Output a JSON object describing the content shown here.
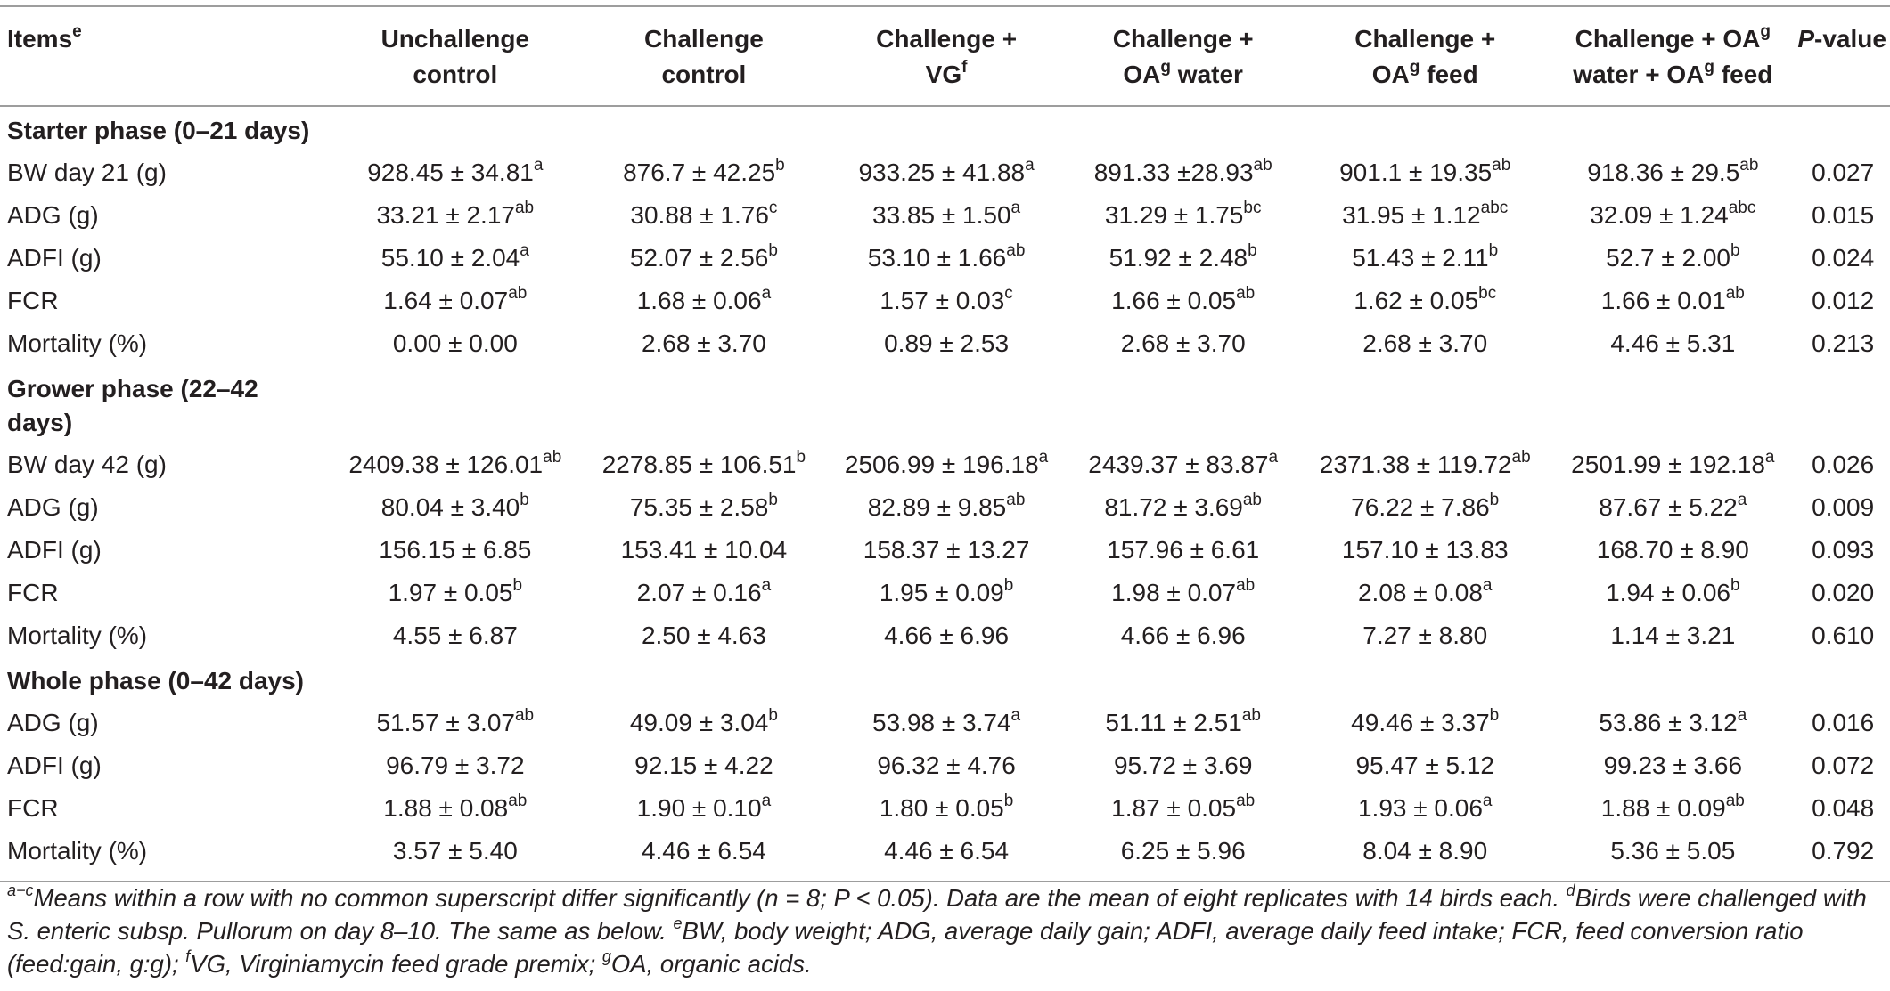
{
  "headers": [
    {
      "lines": [
        {
          "t": "Items",
          "s": "e"
        }
      ]
    },
    {
      "lines": [
        {
          "t": "Unchallenge",
          "s": ""
        },
        {
          "t": "control",
          "s": ""
        }
      ]
    },
    {
      "lines": [
        {
          "t": "Challenge",
          "s": ""
        },
        {
          "t": "control",
          "s": ""
        }
      ]
    },
    {
      "lines": [
        {
          "t": "Challenge +",
          "s": ""
        },
        {
          "t": "VG",
          "s": "f"
        }
      ]
    },
    {
      "lines": [
        {
          "t": "Challenge +",
          "s": ""
        },
        {
          "t": "OA",
          "s": "g",
          "t2": " water"
        }
      ]
    },
    {
      "lines": [
        {
          "t": "Challenge +",
          "s": ""
        },
        {
          "t": "OA",
          "s": "g",
          "t2": " feed"
        }
      ]
    },
    {
      "lines": [
        {
          "t": "Challenge + OA",
          "s": "g"
        },
        {
          "t": "water + OA",
          "s": "g",
          "t2": " feed"
        }
      ]
    },
    {
      "lines": [
        {
          "t": "P",
          "italic": true,
          "t2": "-value"
        }
      ]
    }
  ],
  "sections": [
    {
      "title": "Starter phase (0–21 days)",
      "rows": [
        {
          "label": "BW day 21 (g)",
          "cells": [
            [
              "928.45 ± 34.81",
              "a"
            ],
            [
              "876.7 ± 42.25",
              "b"
            ],
            [
              "933.25 ± 41.88",
              "a"
            ],
            [
              "891.33 ±28.93",
              "ab"
            ],
            [
              "901.1 ± 19.35",
              "ab"
            ],
            [
              "918.36 ± 29.5",
              "ab"
            ]
          ],
          "p": "0.027"
        },
        {
          "label": "ADG (g)",
          "cells": [
            [
              "33.21 ± 2.17",
              "ab"
            ],
            [
              "30.88 ± 1.76",
              "c"
            ],
            [
              "33.85 ± 1.50",
              "a"
            ],
            [
              "31.29 ± 1.75",
              "bc"
            ],
            [
              "31.95 ± 1.12",
              "abc"
            ],
            [
              "32.09 ± 1.24",
              "abc"
            ]
          ],
          "p": "0.015"
        },
        {
          "label": "ADFI (g)",
          "cells": [
            [
              "55.10 ± 2.04",
              "a"
            ],
            [
              "52.07 ± 2.56",
              "b"
            ],
            [
              "53.10 ± 1.66",
              "ab"
            ],
            [
              "51.92 ± 2.48",
              "b"
            ],
            [
              "51.43 ± 2.11",
              "b"
            ],
            [
              "52.7 ± 2.00",
              "b"
            ]
          ],
          "p": "0.024"
        },
        {
          "label": "FCR",
          "cells": [
            [
              "1.64 ± 0.07",
              "ab"
            ],
            [
              "1.68 ± 0.06",
              "a"
            ],
            [
              "1.57 ± 0.03",
              "c"
            ],
            [
              "1.66 ± 0.05",
              "ab"
            ],
            [
              "1.62 ± 0.05",
              "bc"
            ],
            [
              "1.66 ± 0.01",
              "ab"
            ]
          ],
          "p": "0.012"
        },
        {
          "label": "Mortality (%)",
          "cells": [
            [
              "0.00 ± 0.00",
              ""
            ],
            [
              "2.68 ± 3.70",
              ""
            ],
            [
              "0.89 ± 2.53",
              ""
            ],
            [
              "2.68 ± 3.70",
              ""
            ],
            [
              "2.68 ± 3.70",
              ""
            ],
            [
              "4.46 ± 5.31",
              ""
            ]
          ],
          "p": "0.213"
        }
      ]
    },
    {
      "title": "Grower phase (22–42 days)",
      "rows": [
        {
          "label": "BW day 42 (g)",
          "cells": [
            [
              "2409.38 ± 126.01",
              "ab"
            ],
            [
              "2278.85 ± 106.51",
              "b"
            ],
            [
              "2506.99 ± 196.18",
              "a"
            ],
            [
              "2439.37 ± 83.87",
              "a"
            ],
            [
              "2371.38 ± 119.72",
              "ab"
            ],
            [
              "2501.99 ± 192.18",
              "a"
            ]
          ],
          "p": "0.026"
        },
        {
          "label": "ADG (g)",
          "cells": [
            [
              "80.04 ± 3.40",
              "b"
            ],
            [
              "75.35 ± 2.58",
              "b"
            ],
            [
              "82.89 ± 9.85",
              "ab"
            ],
            [
              "81.72 ± 3.69",
              "ab"
            ],
            [
              "76.22 ± 7.86",
              "b"
            ],
            [
              "87.67 ± 5.22",
              "a"
            ]
          ],
          "p": "0.009"
        },
        {
          "label": "ADFI (g)",
          "cells": [
            [
              "156.15 ± 6.85",
              ""
            ],
            [
              "153.41 ± 10.04",
              ""
            ],
            [
              "158.37 ± 13.27",
              ""
            ],
            [
              "157.96 ± 6.61",
              ""
            ],
            [
              "157.10 ± 13.83",
              ""
            ],
            [
              "168.70 ± 8.90",
              ""
            ]
          ],
          "p": "0.093"
        },
        {
          "label": "FCR",
          "cells": [
            [
              "1.97 ± 0.05",
              "b"
            ],
            [
              "2.07 ± 0.16",
              "a"
            ],
            [
              "1.95 ± 0.09",
              "b"
            ],
            [
              "1.98 ± 0.07",
              "ab"
            ],
            [
              "2.08 ± 0.08",
              "a"
            ],
            [
              "1.94 ± 0.06",
              "b"
            ]
          ],
          "p": "0.020"
        },
        {
          "label": "Mortality (%)",
          "cells": [
            [
              "4.55 ± 6.87",
              ""
            ],
            [
              "2.50 ± 4.63",
              ""
            ],
            [
              "4.66 ± 6.96",
              ""
            ],
            [
              "4.66 ± 6.96",
              ""
            ],
            [
              "7.27 ± 8.80",
              ""
            ],
            [
              "1.14 ± 3.21",
              ""
            ]
          ],
          "p": "0.610"
        }
      ]
    },
    {
      "title": "Whole phase (0–42 days)",
      "rows": [
        {
          "label": "ADG (g)",
          "cells": [
            [
              "51.57 ± 3.07",
              "ab"
            ],
            [
              "49.09 ± 3.04",
              "b"
            ],
            [
              "53.98 ± 3.74",
              "a"
            ],
            [
              "51.11 ± 2.51",
              "ab"
            ],
            [
              "49.46 ± 3.37",
              "b"
            ],
            [
              "53.86 ± 3.12",
              "a"
            ]
          ],
          "p": "0.016"
        },
        {
          "label": "ADFI (g)",
          "cells": [
            [
              "96.79 ± 3.72",
              ""
            ],
            [
              "92.15 ± 4.22",
              ""
            ],
            [
              "96.32 ± 4.76",
              ""
            ],
            [
              "95.72 ± 3.69",
              ""
            ],
            [
              "95.47 ± 5.12",
              ""
            ],
            [
              "99.23 ± 3.66",
              ""
            ]
          ],
          "p": "0.072"
        },
        {
          "label": "FCR",
          "cells": [
            [
              "1.88 ± 0.08",
              "ab"
            ],
            [
              "1.90 ± 0.10",
              "a"
            ],
            [
              "1.80 ± 0.05",
              "b"
            ],
            [
              "1.87 ± 0.05",
              "ab"
            ],
            [
              "1.93 ± 0.06",
              "a"
            ],
            [
              "1.88 ± 0.09",
              "ab"
            ]
          ],
          "p": "0.048"
        },
        {
          "label": "Mortality (%)",
          "cells": [
            [
              "3.57 ± 5.40",
              ""
            ],
            [
              "4.46 ± 6.54",
              ""
            ],
            [
              "4.46 ± 6.54",
              ""
            ],
            [
              "6.25 ± 5.96",
              ""
            ],
            [
              "8.04 ± 8.90",
              ""
            ],
            [
              "5.36 ± 5.05",
              ""
            ]
          ],
          "p": "0.792"
        }
      ]
    }
  ],
  "footnote": [
    {
      "s": "a−c",
      "t": "Means within a row with no common superscript differ significantly (n = 8; P < 0.05). Data are the mean of eight replicates with 14 birds each. "
    },
    {
      "s": "d",
      "t": "Birds were challenged with S. enteric subsp. Pullorum on day 8–10. The same as below. "
    },
    {
      "s": "e",
      "t": "BW, body weight; ADG, average daily gain; ADFI, average daily feed intake; FCR, feed conversion ratio (feed:gain, g:g); "
    },
    {
      "s": "f",
      "t": "VG, Virginiamycin feed grade premix; "
    },
    {
      "s": "g",
      "t": "OA, organic acids."
    }
  ]
}
